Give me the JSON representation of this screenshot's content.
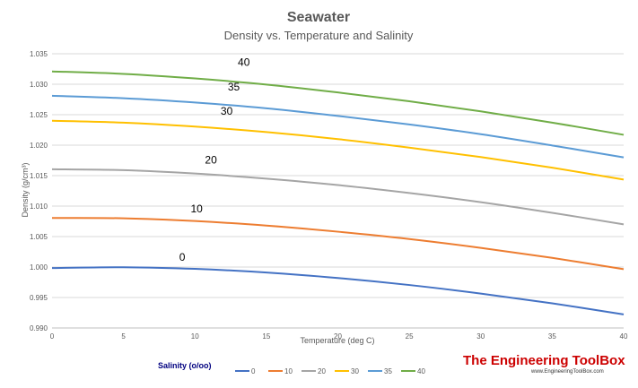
{
  "chart_data": {
    "type": "line",
    "title": "Seawater",
    "subtitle": "Density vs. Temperature and Salinity",
    "xlabel": "Temperature  (deg C)",
    "ylabel": "Density  (g/cm³)",
    "xlim": [
      0,
      40
    ],
    "ylim": [
      0.99,
      1.035
    ],
    "xticks": [
      "0",
      "5",
      "10",
      "15",
      "20",
      "25",
      "30",
      "35",
      "40"
    ],
    "yticks": [
      "0.990",
      "0.995",
      "1.000",
      "1.005",
      "1.010",
      "1.015",
      "1.020",
      "1.025",
      "1.030",
      "1.035"
    ],
    "grid": true,
    "legend": {
      "title": "Salinity (o/oo)",
      "placement": "bottom"
    },
    "x": [
      0,
      5,
      10,
      15,
      20,
      25,
      30,
      35,
      40
    ],
    "series": [
      {
        "name": "0",
        "color": "#4472C4",
        "values": [
          0.99984,
          0.99997,
          0.9997,
          0.9991,
          0.9982,
          0.99705,
          0.99565,
          0.99404,
          0.99222
        ]
      },
      {
        "name": "10",
        "color": "#ED7D31",
        "values": [
          1.00805,
          1.008,
          1.00755,
          1.0068,
          1.0058,
          1.0046,
          1.00315,
          1.0015,
          0.99965
        ]
      },
      {
        "name": "20",
        "color": "#A5A5A5",
        "values": [
          1.01605,
          1.0159,
          1.01535,
          1.0145,
          1.01345,
          1.01215,
          1.01065,
          1.0089,
          1.007
        ]
      },
      {
        "name": "30",
        "color": "#FFC000",
        "values": [
          1.024,
          1.0237,
          1.02305,
          1.02215,
          1.021,
          1.0196,
          1.01805,
          1.0163,
          1.01435
        ]
      },
      {
        "name": "35",
        "color": "#5B9BD5",
        "values": [
          1.0281,
          1.0277,
          1.027,
          1.02605,
          1.0248,
          1.0234,
          1.0218,
          1.01995,
          1.018
        ]
      },
      {
        "name": "40",
        "color": "#70AD47",
        "values": [
          1.0321,
          1.0317,
          1.03095,
          1.02995,
          1.02865,
          1.0272,
          1.02555,
          1.0237,
          1.0217
        ]
      }
    ],
    "annotations": [
      {
        "text": "0",
        "x": 8.9,
        "y": 1.001
      },
      {
        "text": "10",
        "x": 9.7,
        "y": 1.009
      },
      {
        "text": "20",
        "x": 10.7,
        "y": 1.017
      },
      {
        "text": "30",
        "x": 11.8,
        "y": 1.025
      },
      {
        "text": "35",
        "x": 12.3,
        "y": 1.029
      },
      {
        "text": "40",
        "x": 13.0,
        "y": 1.033
      }
    ]
  },
  "logo": {
    "name": "The Engineering ToolBox",
    "url": "www.EngineeringToolBox.com"
  }
}
